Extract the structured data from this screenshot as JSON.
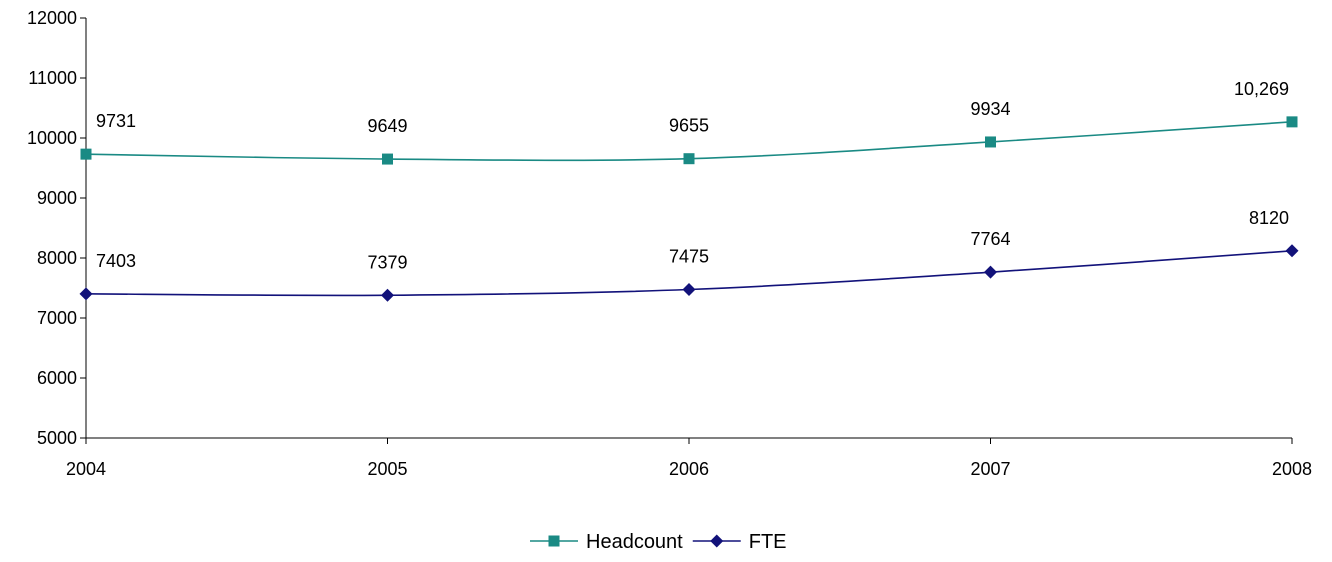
{
  "chart_data": {
    "type": "line",
    "title": "",
    "xlabel": "",
    "ylabel": "",
    "categories": [
      "2004",
      "2005",
      "2006",
      "2007",
      "2008"
    ],
    "ylim": [
      5000,
      12000
    ],
    "y_ticks": [
      5000,
      6000,
      7000,
      8000,
      9000,
      10000,
      11000,
      12000
    ],
    "y_tick_labels": [
      "5000",
      "6000",
      "7000",
      "8000",
      "9000",
      "10000",
      "11000",
      "12000"
    ],
    "grid": false,
    "legend_position": "bottom",
    "series": [
      {
        "name": "Headcount",
        "values": [
          9731,
          9649,
          9655,
          9934,
          10269
        ],
        "labels": [
          "9731",
          "9649",
          "9655",
          "9934",
          "10,269"
        ],
        "color": "#1a8a84",
        "marker": "square"
      },
      {
        "name": "FTE",
        "values": [
          7403,
          7379,
          7475,
          7764,
          8120
        ],
        "labels": [
          "7403",
          "7379",
          "7475",
          "7764",
          "8120"
        ],
        "color": "#12127a",
        "marker": "diamond"
      }
    ]
  }
}
